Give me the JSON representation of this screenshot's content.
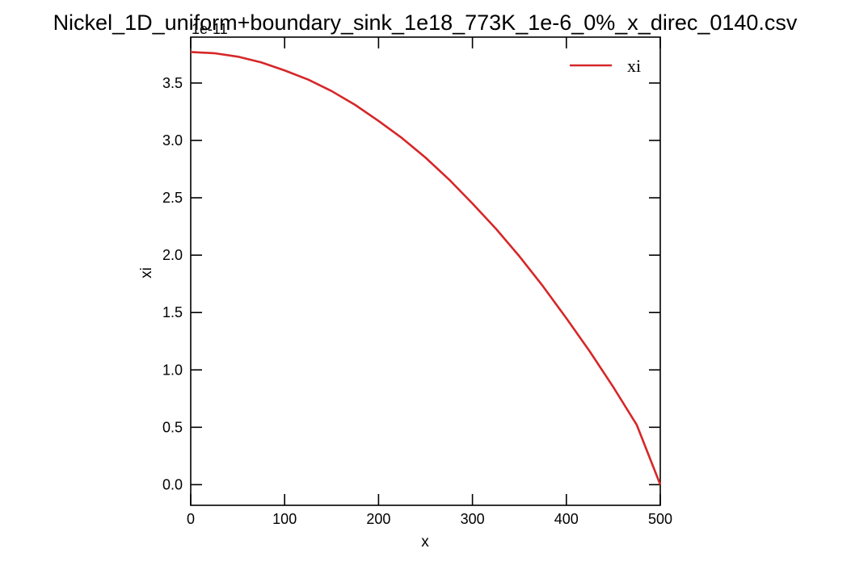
{
  "chart_data": {
    "type": "line",
    "title": "Nickel_1D_uniform+boundary_sink_1e18_773K_1e-6_0%_x_direc_0140.csv",
    "xlabel": "x",
    "ylabel": "xi",
    "y_offset_label": "1e-11",
    "xlim": [
      0,
      500
    ],
    "ylim": [
      -0.18,
      3.9
    ],
    "x_ticks": [
      0,
      100,
      200,
      300,
      400,
      500
    ],
    "x_tick_labels": [
      "0",
      "100",
      "200",
      "300",
      "400",
      "500"
    ],
    "y_ticks": [
      0.0,
      0.5,
      1.0,
      1.5,
      2.0,
      2.5,
      3.0,
      3.5
    ],
    "y_tick_labels": [
      "0.0",
      "0.5",
      "1.0",
      "1.5",
      "2.0",
      "2.5",
      "3.0",
      "3.5"
    ],
    "grid": false,
    "legend_position": "top-right",
    "series": [
      {
        "name": "xi",
        "color": "#d62728",
        "x": [
          0,
          25,
          50,
          75,
          100,
          125,
          150,
          175,
          200,
          225,
          250,
          275,
          300,
          325,
          350,
          375,
          400,
          425,
          450,
          475,
          500
        ],
        "y": [
          3.77,
          3.76,
          3.73,
          3.68,
          3.61,
          3.53,
          3.43,
          3.31,
          3.17,
          3.02,
          2.85,
          2.66,
          2.45,
          2.23,
          1.99,
          1.73,
          1.45,
          1.16,
          0.85,
          0.52,
          0.0
        ]
      }
    ]
  }
}
